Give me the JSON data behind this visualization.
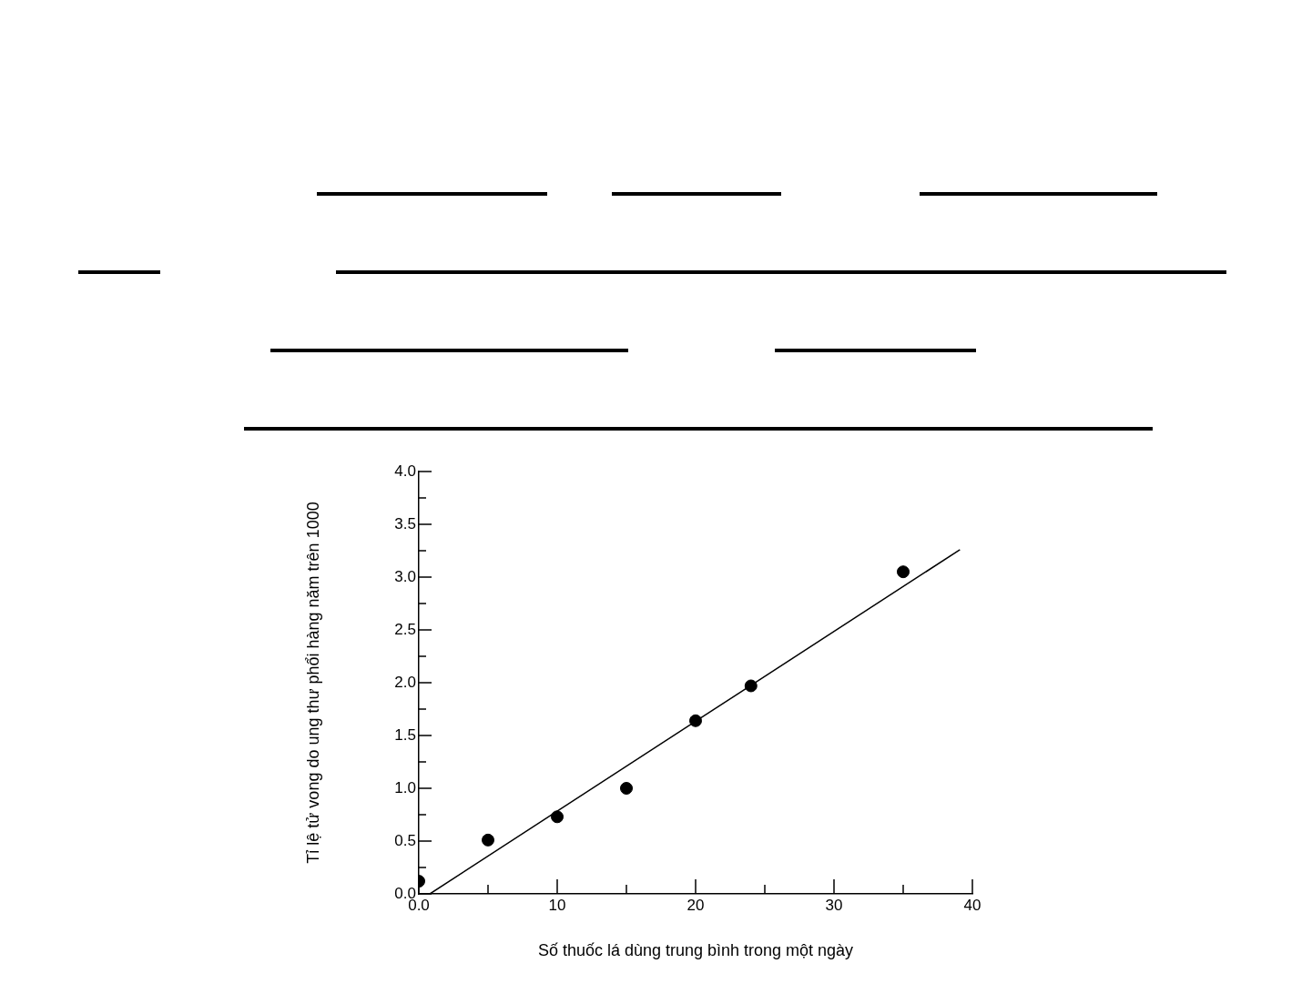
{
  "chart_data": {
    "type": "scatter",
    "xlabel": "Số thuốc lá dùng trung bình trong một ngày",
    "ylabel": "Tỉ lệ tử vong do ung thư phổi hàng năm trên 1000",
    "xlim": [
      0,
      40
    ],
    "xticks": [
      {
        "value": 0,
        "label": "0.0"
      },
      {
        "value": 5,
        "label": null
      },
      10,
      {
        "value": 15,
        "label": null
      },
      20,
      {
        "value": 25,
        "label": null
      },
      30,
      {
        "value": 35,
        "label": null
      },
      40
    ],
    "ylim": [
      0,
      4
    ],
    "yticks": [
      {
        "value": 0,
        "label": "0.0"
      },
      {
        "value": 0.25,
        "label": null
      },
      {
        "value": 0.5,
        "label": "0.5"
      },
      {
        "value": 0.75,
        "label": null
      },
      {
        "value": 1,
        "label": "1.0"
      },
      {
        "value": 1.25,
        "label": null
      },
      {
        "value": 1.5,
        "label": "1.5"
      },
      {
        "value": 1.75,
        "label": null
      },
      {
        "value": 2,
        "label": "2.0"
      },
      {
        "value": 2.25,
        "label": null
      },
      {
        "value": 2.5,
        "label": "2.5"
      },
      {
        "value": 2.75,
        "label": null
      },
      {
        "value": 3,
        "label": "3.0"
      },
      {
        "value": 3.25,
        "label": null
      },
      {
        "value": 3.5,
        "label": "3.5"
      },
      {
        "value": 3.75,
        "label": null
      },
      {
        "value": 4,
        "label": "4.0"
      }
    ],
    "grid": false,
    "legend": false,
    "marker": "circle",
    "series": [
      {
        "color": "#000000",
        "x": [
          0,
          5,
          10,
          15,
          20,
          24,
          35
        ],
        "values": [
          0.12,
          0.51,
          0.73,
          1.0,
          1.64,
          1.97,
          3.05
        ]
      },
      {
        "type": "line",
        "marker": "none",
        "color": "#000000",
        "x": [
          0.8,
          39.1
        ],
        "values": [
          0,
          3.26
        ]
      }
    ]
  }
}
